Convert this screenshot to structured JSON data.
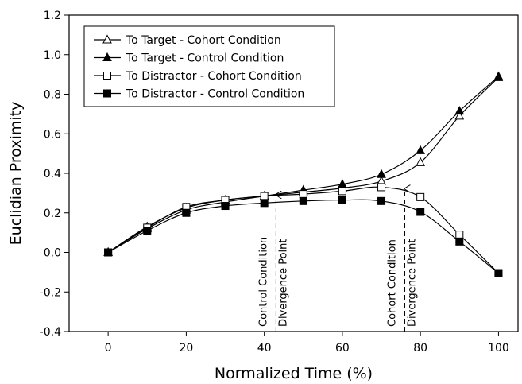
{
  "chart_data": {
    "type": "line",
    "xlabel": "Normalized Time (%)",
    "ylabel": "Euclidian Proximity",
    "xlim": [
      -10,
      105
    ],
    "ylim": [
      -0.4,
      1.2
    ],
    "x_ticks": [
      0,
      20,
      40,
      60,
      80,
      100
    ],
    "y_ticks": [
      -0.4,
      -0.2,
      0.0,
      0.2,
      0.4,
      0.6,
      0.8,
      1.0,
      1.2
    ],
    "x_tick_labels": [
      "0",
      "20",
      "40",
      "60",
      "80",
      "100"
    ],
    "y_tick_labels": [
      "-0.4",
      "-0.2",
      "0.0",
      "0.2",
      "0.4",
      "0.6",
      "0.8",
      "1.0",
      "1.2"
    ],
    "grid": false,
    "legend_position": "top-left",
    "x": [
      0,
      10,
      20,
      30,
      40,
      50,
      60,
      70,
      80,
      90,
      100
    ],
    "series": [
      {
        "name": "To Target - Cohort Condition",
        "marker": "open-triangle",
        "values": [
          0.0,
          0.13,
          0.225,
          0.265,
          0.285,
          0.305,
          0.325,
          0.36,
          0.455,
          0.69,
          0.885
        ]
      },
      {
        "name": "To Target - Control Condition",
        "marker": "filled-triangle",
        "values": [
          0.0,
          0.12,
          0.215,
          0.255,
          0.285,
          0.315,
          0.345,
          0.395,
          0.515,
          0.715,
          0.89
        ]
      },
      {
        "name": "To Distractor - Cohort Condition",
        "marker": "open-square",
        "values": [
          0.0,
          0.125,
          0.23,
          0.265,
          0.285,
          0.295,
          0.31,
          0.33,
          0.28,
          0.09,
          -0.105
        ]
      },
      {
        "name": "To Distractor - Control Condition",
        "marker": "filled-square",
        "values": [
          0.0,
          0.11,
          0.2,
          0.235,
          0.25,
          0.26,
          0.265,
          0.26,
          0.205,
          0.055,
          -0.105
        ]
      }
    ],
    "annotations": [
      {
        "x": 43,
        "y_from": -0.4,
        "y_to": 0.3,
        "style": "dashed-arrow",
        "lines": [
          "Control Condition",
          "Divergence Point"
        ]
      },
      {
        "x": 76,
        "y_from": -0.4,
        "y_to": 0.33,
        "style": "dashed-arrow",
        "lines": [
          "Cohort Condition",
          "Divergence Point"
        ]
      }
    ]
  }
}
